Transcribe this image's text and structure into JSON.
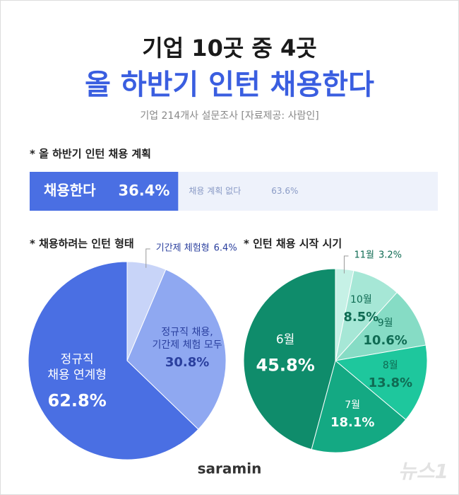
{
  "header": {
    "title": "기업 10곳 중 4곳",
    "headline": "올 하반기 인턴 채용한다",
    "subtitle": "기업 214개사 설문조사 [자료제공: 사람인]"
  },
  "chart_data": [
    {
      "type": "bar",
      "stacked": true,
      "orientation": "horizontal",
      "title": "* 올 하반기 인턴 채용 계획",
      "series": [
        {
          "name": "채용한다",
          "color": "#4a6fe3",
          "values": [
            36.4
          ],
          "value_labels": [
            "36.4%"
          ]
        },
        {
          "name": "채용 계획 없다",
          "color": "#eef2fb",
          "values": [
            63.6
          ],
          "value_labels": [
            "63.6%"
          ]
        }
      ]
    },
    {
      "type": "pie",
      "title": "* 채용하려는 인턴 형태",
      "categories": [
        "기간제 체험형",
        "정규직 채용,\n기간제 체험 모두",
        "정규직\n채용 연계형"
      ],
      "values": [
        6.4,
        30.8,
        62.8
      ],
      "value_labels": [
        "6.4%",
        "30.8%",
        "62.8%"
      ],
      "colors": [
        "#c8d4f8",
        "#8fa8f1",
        "#4a6fe3"
      ],
      "label_colors": [
        "#2a3f9e",
        "#2a3f9e",
        "#ffffff"
      ]
    },
    {
      "type": "pie",
      "title": "* 인턴 채용 시작 시기",
      "categories": [
        "11월",
        "10월",
        "9월",
        "8월",
        "7월",
        "6월"
      ],
      "values": [
        3.2,
        8.5,
        10.6,
        13.8,
        18.1,
        45.8
      ],
      "value_labels": [
        "3.2%",
        "8.5%",
        "10.6%",
        "13.8%",
        "18.1%",
        "45.8%"
      ],
      "colors": [
        "#c6f1e6",
        "#a6e7d6",
        "#86dcc5",
        "#1ec79d",
        "#14a983",
        "#0f8c6b"
      ],
      "label_colors": [
        "#0f6b53",
        "#0f6b53",
        "#0f6b53",
        "#0f6b53",
        "#ffffff",
        "#ffffff"
      ]
    }
  ],
  "footer": {
    "brand": "saramin",
    "watermark": "뉴스1"
  }
}
